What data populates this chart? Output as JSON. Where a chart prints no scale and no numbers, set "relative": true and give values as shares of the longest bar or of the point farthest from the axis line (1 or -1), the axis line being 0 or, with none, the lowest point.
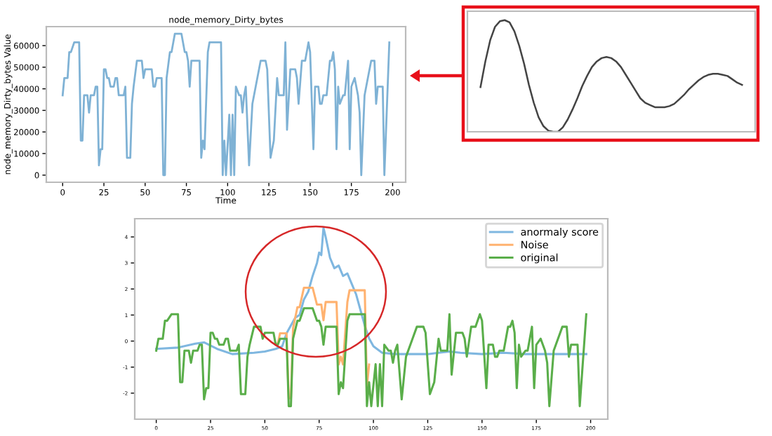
{
  "chart_data": [
    {
      "type": "line",
      "title": "node_memory_Dirty_bytes",
      "xlabel": "Time",
      "ylabel": "node_memory_Dirty_bytes Value",
      "xlim": [
        -9.9,
        207.9
      ],
      "ylim": [
        -3300,
        68800
      ],
      "xticks": [
        0,
        25,
        50,
        75,
        100,
        125,
        150,
        175,
        200
      ],
      "yticks": [
        0,
        10000,
        20000,
        30000,
        40000,
        50000,
        60000
      ],
      "series": [
        {
          "color": "#7fb2d5",
          "x": [
            0,
            1,
            3,
            4,
            5,
            7,
            10,
            11,
            12,
            13,
            15,
            16,
            17,
            19,
            20,
            21,
            22,
            23,
            24,
            25,
            26,
            27,
            28,
            29,
            31,
            32,
            33,
            34,
            37,
            38,
            39,
            41,
            42,
            43,
            45,
            48,
            49,
            50,
            54,
            55,
            56,
            57,
            60,
            61,
            62,
            63,
            65,
            66,
            68,
            72,
            74,
            75,
            76,
            77,
            78,
            83,
            84,
            85,
            86,
            88,
            89,
            96,
            97,
            98,
            99,
            101,
            102,
            103,
            104,
            105,
            107,
            108,
            109,
            110,
            111,
            113,
            115,
            118,
            120,
            123,
            124,
            126,
            128,
            130,
            131,
            134,
            135,
            136,
            138,
            141,
            142,
            143,
            145,
            147,
            149,
            150,
            152,
            153,
            155,
            156,
            157,
            158,
            160,
            162,
            163,
            164,
            165,
            166,
            167,
            168,
            170,
            171,
            173,
            174,
            175,
            177,
            179,
            180,
            181,
            183,
            184,
            187,
            189,
            190,
            191,
            194,
            195,
            197,
            198
          ],
          "values": [
            37000,
            45000,
            45000,
            57000,
            57000,
            61500,
            61500,
            16000,
            16000,
            37000,
            37000,
            29000,
            37000,
            37000,
            41000,
            41000,
            4500,
            12000,
            12000,
            49000,
            49000,
            45000,
            45000,
            41000,
            41000,
            45000,
            45000,
            37000,
            37000,
            41000,
            8000,
            8000,
            33000,
            41000,
            53000,
            53000,
            45000,
            49000,
            49000,
            41000,
            41000,
            45000,
            45000,
            0,
            0,
            45000,
            57000,
            57000,
            65500,
            65500,
            57000,
            57000,
            53000,
            41000,
            53000,
            53000,
            8000,
            16000,
            12000,
            57000,
            61500,
            61500,
            0,
            16000,
            0,
            28000,
            0,
            28000,
            0,
            41000,
            37000,
            37000,
            29000,
            37000,
            41000,
            4500,
            33000,
            45000,
            53000,
            53000,
            49000,
            8000,
            16000,
            45000,
            37000,
            37000,
            61500,
            21000,
            49000,
            49000,
            45000,
            33000,
            53000,
            53000,
            61500,
            57000,
            12000,
            41000,
            41000,
            33000,
            33000,
            37000,
            37000,
            53000,
            53000,
            57000,
            49000,
            12000,
            41000,
            33000,
            37000,
            37000,
            53000,
            12000,
            41000,
            45000,
            37000,
            29000,
            0,
            37000,
            41000,
            53000,
            53000,
            33000,
            41000,
            41000,
            0,
            41000,
            61500
          ]
        }
      ]
    },
    {
      "type": "line",
      "relative": true,
      "categories": [
        null,
        null,
        null,
        null,
        null,
        null,
        null,
        null,
        null,
        null,
        null,
        null,
        null,
        null,
        null,
        null,
        null,
        null,
        null,
        null,
        null,
        null,
        null,
        null,
        null,
        null,
        null,
        null,
        null,
        null,
        null,
        null,
        null,
        null,
        null,
        null,
        null,
        null,
        null,
        null,
        null,
        null,
        null,
        null,
        null,
        null,
        null,
        null,
        null,
        null,
        null,
        null,
        null,
        null,
        null
      ],
      "series": [
        {
          "color": "#444444",
          "values": [
            0.4,
            0.63,
            0.82,
            0.94,
            0.99,
            1,
            0.98,
            0.9,
            0.77,
            0.61,
            0.42,
            0.26,
            0.13,
            0.05,
            0.01,
            0,
            0,
            0.04,
            0.11,
            0.2,
            0.3,
            0.41,
            0.5,
            0.58,
            0.63,
            0.66,
            0.67,
            0.66,
            0.63,
            0.58,
            0.51,
            0.44,
            0.37,
            0.3,
            0.26,
            0.24,
            0.22,
            0.22,
            0.22,
            0.23,
            0.25,
            0.29,
            0.33,
            0.38,
            0.42,
            0.46,
            0.49,
            0.51,
            0.52,
            0.52,
            0.51,
            0.5,
            0.47,
            0.44,
            0.42
          ]
        }
      ]
    },
    {
      "type": "line",
      "legend": "top right",
      "xlim": [
        -9.9,
        207.9
      ],
      "ylim": [
        -3.0,
        4.7
      ],
      "xticks": [
        0,
        25,
        50,
        75,
        100,
        125,
        150,
        175,
        200
      ],
      "yticks": [
        -2,
        -1,
        0,
        1,
        2,
        3,
        4
      ],
      "series": [
        {
          "name": "anormaly score",
          "color": "#7fb7e0",
          "x": [
            0,
            10,
            18,
            22,
            28,
            35,
            45,
            50,
            55,
            58,
            60,
            62,
            64,
            66,
            68,
            70,
            72,
            74,
            75,
            76,
            77,
            78,
            79,
            80,
            81,
            82,
            84,
            86,
            88,
            90,
            92,
            94,
            96,
            98,
            100,
            104,
            110,
            125,
            130,
            135,
            140,
            150,
            160,
            170,
            180,
            190,
            198
          ],
          "values": [
            -0.3,
            -0.25,
            -0.1,
            -0.05,
            -0.3,
            -0.5,
            -0.45,
            -0.4,
            -0.3,
            -0.2,
            0.3,
            0.6,
            0.9,
            1.0,
            1.6,
            1.9,
            2.5,
            3.0,
            3.4,
            3.3,
            4.35,
            4.0,
            3.6,
            3.2,
            3.0,
            2.8,
            2.9,
            2.5,
            2.6,
            2.2,
            1.8,
            1.2,
            0.6,
            0.1,
            -0.2,
            -0.45,
            -0.5,
            -0.5,
            -0.45,
            -0.4,
            -0.45,
            -0.5,
            -0.45,
            -0.5,
            -0.5,
            -0.5,
            -0.5
          ]
        },
        {
          "name": "Noise",
          "color": "#ffb270",
          "x": [
            55,
            56,
            57,
            60,
            61,
            62,
            63,
            65,
            66,
            68,
            72,
            74,
            75,
            76,
            77,
            78,
            83,
            84,
            85,
            86,
            88,
            89,
            96,
            97,
            98
          ],
          "values": [
            -0.1,
            -0.1,
            0.3,
            0.3,
            -2.2,
            -2.2,
            0.5,
            1.3,
            1.3,
            2.05,
            2.05,
            1.4,
            1.4,
            1.4,
            0.8,
            1.5,
            1.5,
            -0.9,
            -0.6,
            -0.9,
            1.5,
            1.95,
            1.95,
            -1.75,
            -0.9
          ]
        },
        {
          "name": "original",
          "color": "#5aae4a",
          "x": [
            0,
            1,
            3,
            4,
            5,
            7,
            10,
            11,
            12,
            13,
            15,
            16,
            17,
            19,
            20,
            21,
            22,
            23,
            24,
            25,
            26,
            27,
            28,
            29,
            31,
            32,
            33,
            34,
            37,
            38,
            39,
            41,
            42,
            43,
            45,
            48,
            49,
            50,
            54,
            55,
            56,
            57,
            60,
            61,
            62,
            63,
            65,
            66,
            68,
            72,
            74,
            75,
            76,
            77,
            78,
            83,
            84,
            85,
            86,
            88,
            89,
            96,
            97,
            98,
            99,
            101,
            102,
            103,
            104,
            105,
            107,
            108,
            109,
            110,
            111,
            113,
            115,
            118,
            120,
            123,
            124,
            126,
            128,
            130,
            131,
            134,
            135,
            136,
            138,
            141,
            142,
            143,
            145,
            147,
            149,
            150,
            152,
            153,
            155,
            156,
            157,
            158,
            160,
            162,
            163,
            164,
            165,
            166,
            167,
            168,
            170,
            171,
            173,
            174,
            175,
            177,
            179,
            180,
            181,
            183,
            184,
            187,
            189,
            190,
            191,
            194,
            195,
            197,
            198
          ],
          "values": [
            -0.37,
            0.09,
            0.09,
            0.78,
            0.78,
            1.03,
            1.03,
            -1.58,
            -1.58,
            -0.37,
            -0.37,
            -0.83,
            -0.37,
            -0.37,
            -0.14,
            -0.14,
            -2.24,
            -1.81,
            -1.81,
            0.32,
            0.32,
            0.09,
            0.09,
            -0.14,
            -0.14,
            0.09,
            0.09,
            -0.37,
            -0.37,
            -0.14,
            -2.04,
            -2.04,
            -0.6,
            -0.14,
            0.55,
            0.55,
            0.09,
            0.32,
            0.32,
            -0.14,
            -0.14,
            0.09,
            0.09,
            -2.5,
            -2.5,
            0.09,
            0.78,
            0.78,
            1.26,
            1.26,
            0.78,
            0.78,
            0.55,
            -0.14,
            0.55,
            0.55,
            -2.04,
            -1.58,
            -1.81,
            0.78,
            1.03,
            1.03,
            -2.5,
            -1.58,
            -2.5,
            -0.89,
            -2.5,
            -0.89,
            -2.5,
            -0.14,
            -0.37,
            -0.37,
            -0.83,
            -0.37,
            -0.14,
            -2.24,
            -0.6,
            0.09,
            0.55,
            0.55,
            0.32,
            -2.04,
            -1.58,
            0.09,
            -0.37,
            -0.37,
            1.03,
            -1.29,
            0.32,
            0.32,
            0.09,
            -0.6,
            0.55,
            0.55,
            1.03,
            0.78,
            -1.81,
            -0.14,
            -0.14,
            -0.6,
            -0.6,
            -0.37,
            -0.37,
            0.55,
            0.55,
            0.78,
            0.32,
            -1.81,
            -0.14,
            -0.6,
            -0.37,
            -0.37,
            0.55,
            -1.81,
            -0.14,
            0.09,
            -0.37,
            -0.83,
            -2.5,
            -0.37,
            -0.14,
            0.55,
            0.55,
            -0.6,
            -0.14,
            -0.14,
            -2.5,
            -0.14,
            1.03
          ]
        }
      ]
    }
  ]
}
